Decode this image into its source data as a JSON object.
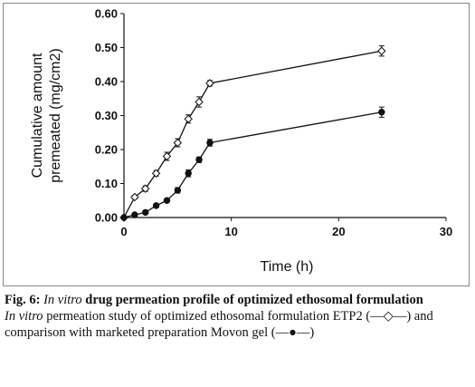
{
  "chart_data": {
    "type": "line",
    "xlabel": "Time (h)",
    "ylabel_lines": [
      "Cumulative amount",
      "premeated (mg/cm2)"
    ],
    "xlim": [
      0,
      30
    ],
    "ylim": [
      0,
      0.6
    ],
    "x_ticks": [
      "0",
      "10",
      "20",
      "30"
    ],
    "y_ticks": [
      "0.00",
      "0.10",
      "0.20",
      "0.30",
      "0.40",
      "0.50",
      "0.60"
    ],
    "grid": false,
    "series": [
      {
        "marker": "open-diamond",
        "x": [
          0,
          1,
          2,
          3,
          4,
          5,
          6,
          7,
          8,
          24
        ],
        "y": [
          0.0,
          0.06,
          0.085,
          0.13,
          0.18,
          0.22,
          0.29,
          0.34,
          0.395,
          0.49
        ],
        "err": [
          0,
          0.005,
          0.008,
          0.008,
          0.012,
          0.012,
          0.012,
          0.015,
          0.008,
          0.015
        ]
      },
      {
        "marker": "filled-circle",
        "x": [
          0,
          1,
          2,
          3,
          4,
          5,
          6,
          7,
          8,
          24
        ],
        "y": [
          0.0,
          0.008,
          0.015,
          0.035,
          0.05,
          0.08,
          0.13,
          0.17,
          0.22,
          0.31
        ],
        "err": [
          0,
          0.003,
          0.004,
          0.005,
          0.005,
          0.008,
          0.01,
          0.008,
          0.01,
          0.015
        ]
      }
    ]
  },
  "caption": {
    "fig_label": "Fig. 6:",
    "fig_italic": "In vitro",
    "fig_rest": "drug permeation profile of optimized ethosomal formulation",
    "desc_italic": "In vitro",
    "desc_rest": "permeation study of optimized ethosomal formulation ETP2 (—◇—) and comparison with marketed preparation Movon gel (—●—)"
  }
}
